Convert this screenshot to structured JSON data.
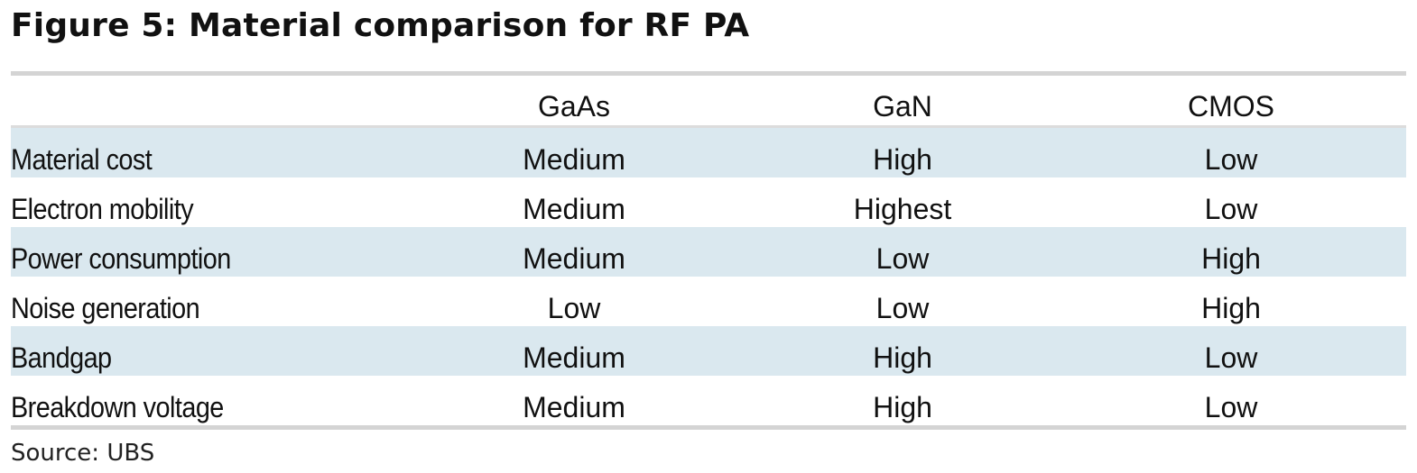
{
  "title": "Figure 5: Material comparison for RF PA",
  "table": {
    "columns": [
      "GaAs",
      "GaN",
      "CMOS"
    ],
    "rows": [
      {
        "label": "Material cost",
        "values": [
          "Medium",
          "High",
          "Low"
        ]
      },
      {
        "label": "Electron mobility",
        "values": [
          "Medium",
          "Highest",
          "Low"
        ]
      },
      {
        "label": "Power consumption",
        "values": [
          "Medium",
          "Low",
          "High"
        ]
      },
      {
        "label": "Noise generation",
        "values": [
          "Low",
          "Low",
          "High"
        ]
      },
      {
        "label": "Bandgap",
        "values": [
          "Medium",
          "High",
          "Low"
        ]
      },
      {
        "label": "Breakdown voltage",
        "values": [
          "Medium",
          "High",
          "Low"
        ]
      }
    ]
  },
  "source": "Source: UBS",
  "colors": {
    "shaded_row": "#dae8ef",
    "rule": "#d4d4d4"
  }
}
